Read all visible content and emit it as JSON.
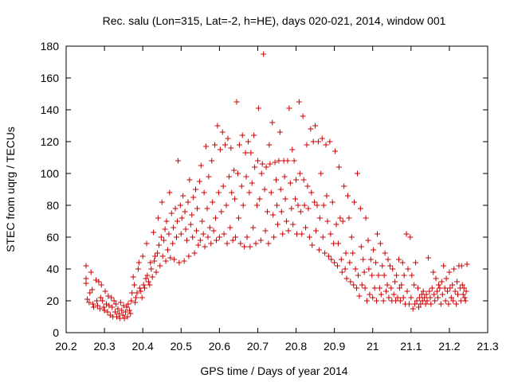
{
  "chart_data": {
    "type": "scatter",
    "title": "Rec. salu (Lon=315, Lat=-2, h=HE), days 020-021, 2014, window 001",
    "xlabel": "GPS time / Days of year 2014",
    "ylabel": "STEC from uqrg / TECUs",
    "xlim": [
      20.2,
      21.3
    ],
    "ylim": [
      0,
      180
    ],
    "x_ticks": [
      20.2,
      20.3,
      20.4,
      20.5,
      20.6,
      20.7,
      20.8,
      20.9,
      21,
      21.1,
      21.2,
      21.3
    ],
    "x_tick_labels": [
      "20.2",
      "20.3",
      "20.4",
      "20.5",
      "20.6",
      "20.7",
      "20.8",
      "20.9",
      "21",
      "21.1",
      "21.2",
      "21.3"
    ],
    "y_ticks": [
      0,
      20,
      40,
      60,
      80,
      100,
      120,
      140,
      160,
      180
    ],
    "y_tick_labels": [
      "0",
      "20",
      "40",
      "60",
      "80",
      "100",
      "120",
      "140",
      "160",
      "180"
    ],
    "grid": false,
    "marker": "plus",
    "color": "#cc0000",
    "points": [
      [
        20.252,
        42
      ],
      [
        20.252,
        34
      ],
      [
        20.252,
        31
      ],
      [
        20.255,
        21
      ],
      [
        20.26,
        19
      ],
      [
        20.262,
        25
      ],
      [
        20.265,
        38
      ],
      [
        20.268,
        27
      ],
      [
        20.27,
        18
      ],
      [
        20.272,
        16
      ],
      [
        20.278,
        33
      ],
      [
        20.28,
        20
      ],
      [
        20.282,
        17
      ],
      [
        20.285,
        32
      ],
      [
        20.288,
        15
      ],
      [
        20.29,
        22
      ],
      [
        20.292,
        30
      ],
      [
        20.295,
        20
      ],
      [
        20.298,
        16
      ],
      [
        20.3,
        14
      ],
      [
        20.302,
        26
      ],
      [
        20.305,
        18
      ],
      [
        20.308,
        13
      ],
      [
        20.31,
        23
      ],
      [
        20.312,
        17
      ],
      [
        20.315,
        11
      ],
      [
        20.318,
        22
      ],
      [
        20.32,
        16
      ],
      [
        20.322,
        10
      ],
      [
        20.325,
        20
      ],
      [
        20.328,
        13
      ],
      [
        20.33,
        18
      ],
      [
        20.332,
        10
      ],
      [
        20.335,
        15
      ],
      [
        20.338,
        12
      ],
      [
        20.34,
        9
      ],
      [
        20.342,
        19
      ],
      [
        20.345,
        14
      ],
      [
        20.348,
        11
      ],
      [
        20.35,
        17
      ],
      [
        20.352,
        9
      ],
      [
        20.355,
        13
      ],
      [
        20.358,
        16
      ],
      [
        20.36,
        10
      ],
      [
        20.362,
        18
      ],
      [
        20.365,
        14
      ],
      [
        20.368,
        12
      ],
      [
        20.37,
        20
      ],
      [
        20.372,
        25
      ],
      [
        20.375,
        35
      ],
      [
        20.378,
        30
      ],
      [
        20.38,
        19
      ],
      [
        20.382,
        22
      ],
      [
        20.385,
        25
      ],
      [
        20.388,
        40
      ],
      [
        20.39,
        44
      ],
      [
        20.392,
        28
      ],
      [
        20.395,
        26
      ],
      [
        20.398,
        22
      ],
      [
        20.4,
        48
      ],
      [
        20.402,
        30
      ],
      [
        20.405,
        28
      ],
      [
        20.408,
        34
      ],
      [
        20.41,
        56
      ],
      [
        20.412,
        36
      ],
      [
        20.415,
        32
      ],
      [
        20.418,
        30
      ],
      [
        20.42,
        44
      ],
      [
        20.422,
        40
      ],
      [
        20.425,
        35
      ],
      [
        20.428,
        63
      ],
      [
        20.43,
        45
      ],
      [
        20.432,
        48
      ],
      [
        20.435,
        38
      ],
      [
        20.438,
        50
      ],
      [
        20.44,
        72
      ],
      [
        20.442,
        55
      ],
      [
        20.445,
        42
      ],
      [
        20.448,
        60
      ],
      [
        20.45,
        82
      ],
      [
        20.452,
        48
      ],
      [
        20.455,
        58
      ],
      [
        20.458,
        65
      ],
      [
        20.46,
        45
      ],
      [
        20.462,
        70
      ],
      [
        20.465,
        52
      ],
      [
        20.468,
        62
      ],
      [
        20.47,
        88
      ],
      [
        20.472,
        47
      ],
      [
        20.475,
        75
      ],
      [
        20.478,
        56
      ],
      [
        20.48,
        66
      ],
      [
        20.482,
        46
      ],
      [
        20.485,
        78
      ],
      [
        20.488,
        60
      ],
      [
        20.49,
        70
      ],
      [
        20.492,
        108
      ],
      [
        20.495,
        44
      ],
      [
        20.498,
        80
      ],
      [
        20.5,
        62
      ],
      [
        20.502,
        72
      ],
      [
        20.505,
        86
      ],
      [
        20.508,
        45
      ],
      [
        20.51,
        76
      ],
      [
        20.512,
        65
      ],
      [
        20.515,
        58
      ],
      [
        20.518,
        82
      ],
      [
        20.52,
        48
      ],
      [
        20.522,
        96
      ],
      [
        20.525,
        68
      ],
      [
        20.528,
        74
      ],
      [
        20.53,
        60
      ],
      [
        20.532,
        85
      ],
      [
        20.535,
        50
      ],
      [
        20.538,
        90
      ],
      [
        20.54,
        64
      ],
      [
        20.542,
        78
      ],
      [
        20.545,
        55
      ],
      [
        20.548,
        95
      ],
      [
        20.55,
        58
      ],
      [
        20.552,
        105
      ],
      [
        20.555,
        70
      ],
      [
        20.558,
        62
      ],
      [
        20.56,
        88
      ],
      [
        20.562,
        54
      ],
      [
        20.565,
        117
      ],
      [
        20.568,
        78
      ],
      [
        20.57,
        60
      ],
      [
        20.572,
        98
      ],
      [
        20.575,
        66
      ],
      [
        20.578,
        56
      ],
      [
        20.58,
        108
      ],
      [
        20.582,
        82
      ],
      [
        20.585,
        64
      ],
      [
        20.588,
        118
      ],
      [
        20.59,
        72
      ],
      [
        20.592,
        58
      ],
      [
        20.595,
        130
      ],
      [
        20.598,
        88
      ],
      [
        20.6,
        60
      ],
      [
        20.602,
        115
      ],
      [
        20.605,
        76
      ],
      [
        20.608,
        126
      ],
      [
        20.61,
        92
      ],
      [
        20.612,
        62
      ],
      [
        20.615,
        118
      ],
      [
        20.618,
        80
      ],
      [
        20.62,
        56
      ],
      [
        20.622,
        122
      ],
      [
        20.625,
        98
      ],
      [
        20.628,
        66
      ],
      [
        20.63,
        116
      ],
      [
        20.632,
        88
      ],
      [
        20.635,
        58
      ],
      [
        20.638,
        102
      ],
      [
        20.64,
        84
      ],
      [
        20.642,
        60
      ],
      [
        20.645,
        145
      ],
      [
        20.648,
        100
      ],
      [
        20.65,
        72
      ],
      [
        20.652,
        118
      ],
      [
        20.655,
        56
      ],
      [
        20.658,
        92
      ],
      [
        20.66,
        124
      ],
      [
        20.662,
        80
      ],
      [
        20.665,
        54
      ],
      [
        20.668,
        113
      ],
      [
        20.67,
        98
      ],
      [
        20.672,
        60
      ],
      [
        20.675,
        120
      ],
      [
        20.678,
        88
      ],
      [
        20.68,
        54
      ],
      [
        20.682,
        113
      ],
      [
        20.685,
        94
      ],
      [
        20.688,
        66
      ],
      [
        20.69,
        124
      ],
      [
        20.692,
        104
      ],
      [
        20.695,
        56
      ],
      [
        20.698,
        80
      ],
      [
        20.7,
        108
      ],
      [
        20.702,
        141
      ],
      [
        20.705,
        84
      ],
      [
        20.708,
        58
      ],
      [
        20.71,
        100
      ],
      [
        20.712,
        106
      ],
      [
        20.715,
        175
      ],
      [
        20.718,
        90
      ],
      [
        20.72,
        64
      ],
      [
        20.722,
        104
      ],
      [
        20.725,
        76
      ],
      [
        20.728,
        56
      ],
      [
        20.73,
        118
      ],
      [
        20.732,
        106
      ],
      [
        20.735,
        88
      ],
      [
        20.738,
        132
      ],
      [
        20.74,
        74
      ],
      [
        20.742,
        60
      ],
      [
        20.745,
        107
      ],
      [
        20.748,
        96
      ],
      [
        20.75,
        80
      ],
      [
        20.752,
        68
      ],
      [
        20.755,
        108
      ],
      [
        20.758,
        126
      ],
      [
        20.76,
        90
      ],
      [
        20.762,
        76
      ],
      [
        20.765,
        62
      ],
      [
        20.768,
        108
      ],
      [
        20.77,
        98
      ],
      [
        20.772,
        84
      ],
      [
        20.775,
        70
      ],
      [
        20.778,
        108
      ],
      [
        20.78,
        64
      ],
      [
        20.782,
        141
      ],
      [
        20.785,
        94
      ],
      [
        20.788,
        78
      ],
      [
        20.79,
        115
      ],
      [
        20.792,
        68
      ],
      [
        20.795,
        108
      ],
      [
        20.798,
        84
      ],
      [
        20.8,
        96
      ],
      [
        20.802,
        62
      ],
      [
        20.805,
        80
      ],
      [
        20.808,
        145
      ],
      [
        20.81,
        100
      ],
      [
        20.812,
        76
      ],
      [
        20.815,
        62
      ],
      [
        20.818,
        136
      ],
      [
        20.82,
        96
      ],
      [
        20.822,
        80
      ],
      [
        20.825,
        66
      ],
      [
        20.828,
        118
      ],
      [
        20.83,
        92
      ],
      [
        20.832,
        78
      ],
      [
        20.835,
        60
      ],
      [
        20.838,
        128
      ],
      [
        20.84,
        88
      ],
      [
        20.842,
        55
      ],
      [
        20.845,
        120
      ],
      [
        20.848,
        82
      ],
      [
        20.85,
        130
      ],
      [
        20.852,
        64
      ],
      [
        20.855,
        80
      ],
      [
        20.858,
        120
      ],
      [
        20.86,
        52
      ],
      [
        20.862,
        72
      ],
      [
        20.865,
        100
      ],
      [
        20.868,
        122
      ],
      [
        20.87,
        60
      ],
      [
        20.872,
        80
      ],
      [
        20.875,
        50
      ],
      [
        20.878,
        118
      ],
      [
        20.88,
        86
      ],
      [
        20.882,
        70
      ],
      [
        20.885,
        48
      ],
      [
        20.888,
        120
      ],
      [
        20.89,
        62
      ],
      [
        20.892,
        46
      ],
      [
        20.895,
        82
      ],
      [
        20.898,
        56
      ],
      [
        20.9,
        44
      ],
      [
        20.902,
        114
      ],
      [
        20.905,
        68
      ],
      [
        20.908,
        42
      ],
      [
        20.91,
        56
      ],
      [
        20.912,
        104
      ],
      [
        20.915,
        72
      ],
      [
        20.918,
        46
      ],
      [
        20.92,
        38
      ],
      [
        20.922,
        70
      ],
      [
        20.925,
        92
      ],
      [
        20.928,
        40
      ],
      [
        20.93,
        50
      ],
      [
        20.932,
        34
      ],
      [
        20.935,
        86
      ],
      [
        20.938,
        72
      ],
      [
        20.94,
        44
      ],
      [
        20.942,
        32
      ],
      [
        20.945,
        60
      ],
      [
        20.948,
        50
      ],
      [
        20.95,
        30
      ],
      [
        20.952,
        82
      ],
      [
        20.955,
        40
      ],
      [
        20.958,
        28
      ],
      [
        20.96,
        100
      ],
      [
        20.962,
        36
      ],
      [
        20.965,
        23
      ],
      [
        20.968,
        78
      ],
      [
        20.97,
        54
      ],
      [
        20.972,
        30
      ],
      [
        20.975,
        46
      ],
      [
        20.978,
        38
      ],
      [
        20.98,
        28
      ],
      [
        20.982,
        72
      ],
      [
        20.985,
        20
      ],
      [
        20.988,
        58
      ],
      [
        20.99,
        40
      ],
      [
        20.992,
        24
      ],
      [
        20.995,
        46
      ],
      [
        20.998,
        36
      ],
      [
        21.0,
        22
      ],
      [
        21.002,
        52
      ],
      [
        21.005,
        28
      ],
      [
        21.008,
        44
      ],
      [
        21.01,
        20
      ],
      [
        21.012,
        62
      ],
      [
        21.015,
        36
      ],
      [
        21.018,
        28
      ],
      [
        21.02,
        56
      ],
      [
        21.022,
        24
      ],
      [
        21.025,
        42
      ],
      [
        21.028,
        20
      ],
      [
        21.03,
        36
      ],
      [
        21.032,
        50
      ],
      [
        21.035,
        26
      ],
      [
        21.038,
        30
      ],
      [
        21.04,
        46
      ],
      [
        21.042,
        22
      ],
      [
        21.045,
        42
      ],
      [
        21.048,
        28
      ],
      [
        21.05,
        20
      ],
      [
        21.052,
        40
      ],
      [
        21.055,
        24
      ],
      [
        21.058,
        32
      ],
      [
        21.06,
        20
      ],
      [
        21.062,
        36
      ],
      [
        21.065,
        22
      ],
      [
        21.068,
        46
      ],
      [
        21.07,
        28
      ],
      [
        21.072,
        20
      ],
      [
        21.075,
        30
      ],
      [
        21.078,
        44
      ],
      [
        21.08,
        22
      ],
      [
        21.082,
        36
      ],
      [
        21.085,
        18
      ],
      [
        21.088,
        62
      ],
      [
        21.09,
        26
      ],
      [
        21.092,
        40
      ],
      [
        21.095,
        18
      ],
      [
        21.098,
        60
      ],
      [
        21.1,
        22
      ],
      [
        21.102,
        36
      ],
      [
        21.105,
        15
      ],
      [
        21.108,
        30
      ],
      [
        21.11,
        18
      ],
      [
        21.112,
        44
      ],
      [
        21.115,
        20
      ],
      [
        21.118,
        28
      ],
      [
        21.12,
        16
      ],
      [
        21.122,
        22
      ],
      [
        21.125,
        18
      ],
      [
        21.128,
        24
      ],
      [
        21.13,
        20
      ],
      [
        21.132,
        26
      ],
      [
        21.135,
        22
      ],
      [
        21.138,
        18
      ],
      [
        21.14,
        24
      ],
      [
        21.142,
        20
      ],
      [
        21.145,
        47
      ],
      [
        21.148,
        26
      ],
      [
        21.15,
        22
      ],
      [
        21.152,
        18
      ],
      [
        21.155,
        28
      ],
      [
        21.158,
        38
      ],
      [
        21.16,
        24
      ],
      [
        21.162,
        20
      ],
      [
        21.165,
        34
      ],
      [
        21.168,
        26
      ],
      [
        21.17,
        22
      ],
      [
        21.172,
        30
      ],
      [
        21.175,
        28
      ],
      [
        21.178,
        18
      ],
      [
        21.18,
        32
      ],
      [
        21.182,
        24
      ],
      [
        21.185,
        42
      ],
      [
        21.188,
        28
      ],
      [
        21.19,
        20
      ],
      [
        21.192,
        34
      ],
      [
        21.195,
        26
      ],
      [
        21.198,
        18
      ],
      [
        21.2,
        38
      ],
      [
        21.202,
        28
      ],
      [
        21.205,
        22
      ],
      [
        21.208,
        30
      ],
      [
        21.21,
        20
      ],
      [
        21.212,
        40
      ],
      [
        21.215,
        26
      ],
      [
        21.218,
        18
      ],
      [
        21.22,
        32
      ],
      [
        21.222,
        24
      ],
      [
        21.225,
        42
      ],
      [
        21.228,
        28
      ],
      [
        21.23,
        20
      ],
      [
        21.232,
        42
      ],
      [
        21.234,
        30
      ],
      [
        21.236,
        24
      ],
      [
        21.238,
        28
      ],
      [
        21.24,
        22
      ],
      [
        21.242,
        20
      ],
      [
        21.244,
        26
      ],
      [
        21.246,
        43
      ]
    ]
  }
}
